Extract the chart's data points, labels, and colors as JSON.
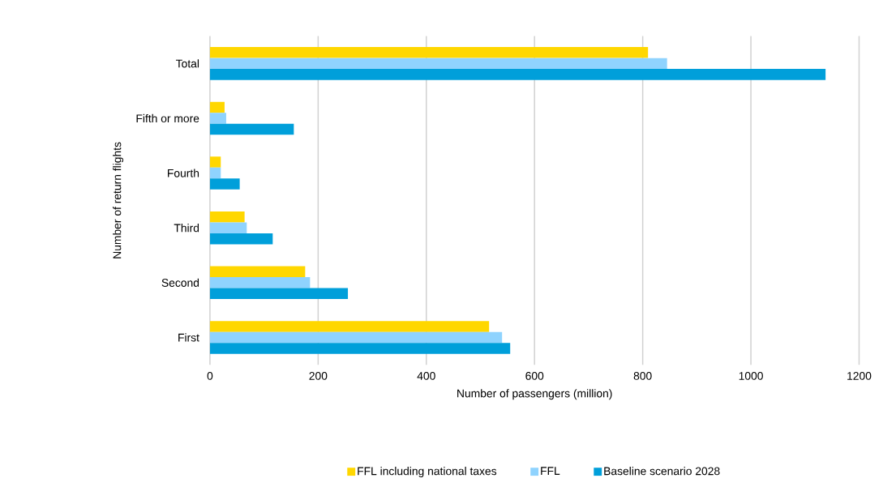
{
  "chart_data": {
    "type": "bar",
    "orientation": "horizontal",
    "xlabel": "Number of passengers (million)",
    "ylabel": "Number of return flights",
    "categories": [
      "Total",
      "Fifth or more",
      "Fourth",
      "Third",
      "Second",
      "First"
    ],
    "series": [
      {
        "name": "FFL including national taxes",
        "color": "#ffd700",
        "values": [
          810,
          27,
          20,
          64,
          176,
          516
        ]
      },
      {
        "name": "FFL",
        "color": "#8fd3fe",
        "values": [
          845,
          30,
          20,
          68,
          185,
          540
        ]
      },
      {
        "name": "Baseline scenario 2028",
        "color": "#009fda",
        "values": [
          1138,
          155,
          55,
          116,
          255,
          555
        ]
      }
    ],
    "xlim": [
      0,
      1200
    ],
    "xticks": [
      0,
      200,
      400,
      600,
      800,
      1000,
      1200
    ],
    "grid": "x",
    "legend": "bottom"
  }
}
